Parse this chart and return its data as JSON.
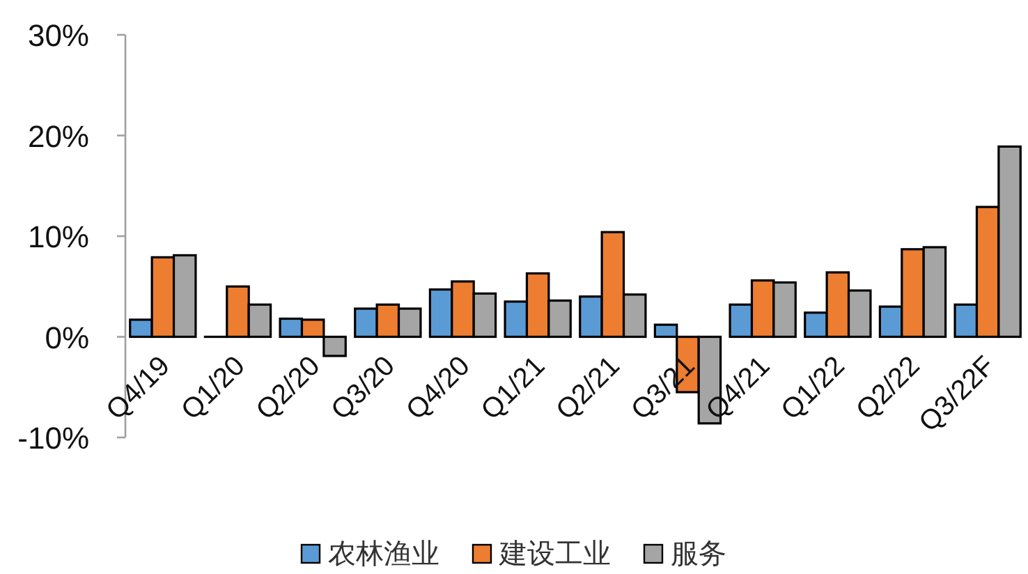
{
  "chart_data": {
    "type": "bar",
    "categories": [
      "Q4/19",
      "Q1/20",
      "Q2/20",
      "Q3/20",
      "Q4/20",
      "Q1/21",
      "Q2/21",
      "Q3/21",
      "Q4/21",
      "Q1/22",
      "Q2/22",
      "Q3/22F"
    ],
    "series": [
      {
        "name": "农林渔业",
        "color": "#5b9bd5",
        "values": [
          1.7,
          0,
          1.8,
          2.8,
          4.7,
          3.5,
          4.0,
          1.2,
          3.2,
          2.4,
          3.0,
          3.2
        ]
      },
      {
        "name": "建设工业",
        "color": "#ed7d31",
        "values": [
          7.9,
          5.0,
          1.7,
          3.2,
          5.5,
          6.3,
          10.4,
          -5.5,
          5.6,
          6.4,
          8.7,
          12.9
        ]
      },
      {
        "name": "服务",
        "color": "#a5a5a5",
        "values": [
          8.1,
          3.2,
          -1.9,
          2.8,
          4.3,
          3.6,
          4.2,
          -8.6,
          5.4,
          4.6,
          8.9,
          18.9
        ]
      }
    ],
    "ylim": [
      -10,
      30
    ],
    "yticks": [
      {
        "value": -10,
        "label": "-10%"
      },
      {
        "value": 0,
        "label": "0%"
      },
      {
        "value": 10,
        "label": "10%"
      },
      {
        "value": 20,
        "label": "20%"
      },
      {
        "value": 30,
        "label": "30%"
      }
    ],
    "legend": "bottom"
  }
}
